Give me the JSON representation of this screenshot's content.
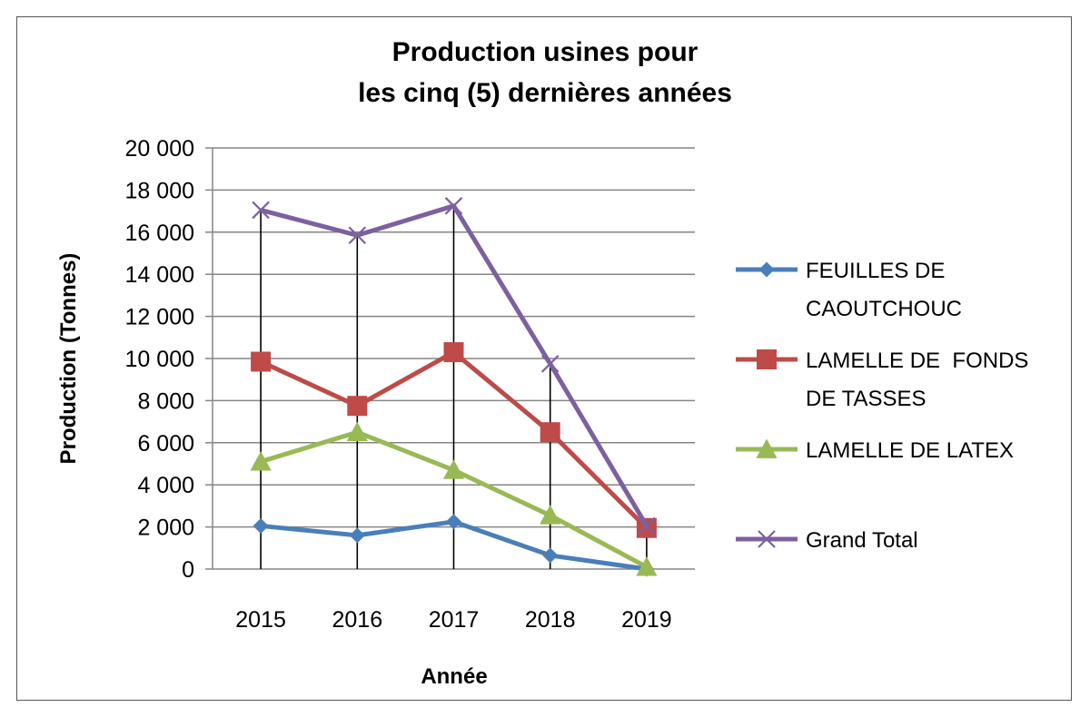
{
  "chart_data": {
    "type": "line",
    "title_lines": [
      "Production usines pour",
      "les cinq (5) dernières années"
    ],
    "xlabel": "Année",
    "ylabel": "Production (Tonnes)",
    "categories": [
      "2015",
      "2016",
      "2017",
      "2018",
      "2019"
    ],
    "ylim": [
      0,
      20000
    ],
    "yticks": [
      "0",
      "2 000",
      "4 000",
      "6 000",
      "8 000",
      "10 000",
      "12 000",
      "14 000",
      "16 000",
      "18 000",
      "20 000"
    ],
    "grid": "horizontal",
    "drop_lines": true,
    "legend_position": "right",
    "series": [
      {
        "name": "FEUILLES DE CAOUTCHOUC",
        "legend_lines": [
          "FEUILLES DE",
          "CAOUTCHOUC"
        ],
        "color": "#4a7ebb",
        "marker": "diamond",
        "values": [
          2050,
          1600,
          2250,
          650,
          0
        ]
      },
      {
        "name": "LAMELLE DE FONDS DE TASSES",
        "legend_lines": [
          "LAMELLE DE  FONDS",
          "DE TASSES"
        ],
        "color": "#be4b48",
        "marker": "square",
        "values": [
          9850,
          7750,
          10300,
          6500,
          1950
        ]
      },
      {
        "name": "LAMELLE DE LATEX",
        "legend_lines": [
          "LAMELLE DE LATEX"
        ],
        "color": "#98b954",
        "marker": "triangle",
        "values": [
          5100,
          6500,
          4700,
          2550,
          100
        ]
      },
      {
        "name": "Grand Total",
        "legend_lines": [
          "Grand Total"
        ],
        "color": "#7d60a0",
        "marker": "x",
        "values": [
          17050,
          15850,
          17250,
          9750,
          2050
        ]
      }
    ]
  }
}
